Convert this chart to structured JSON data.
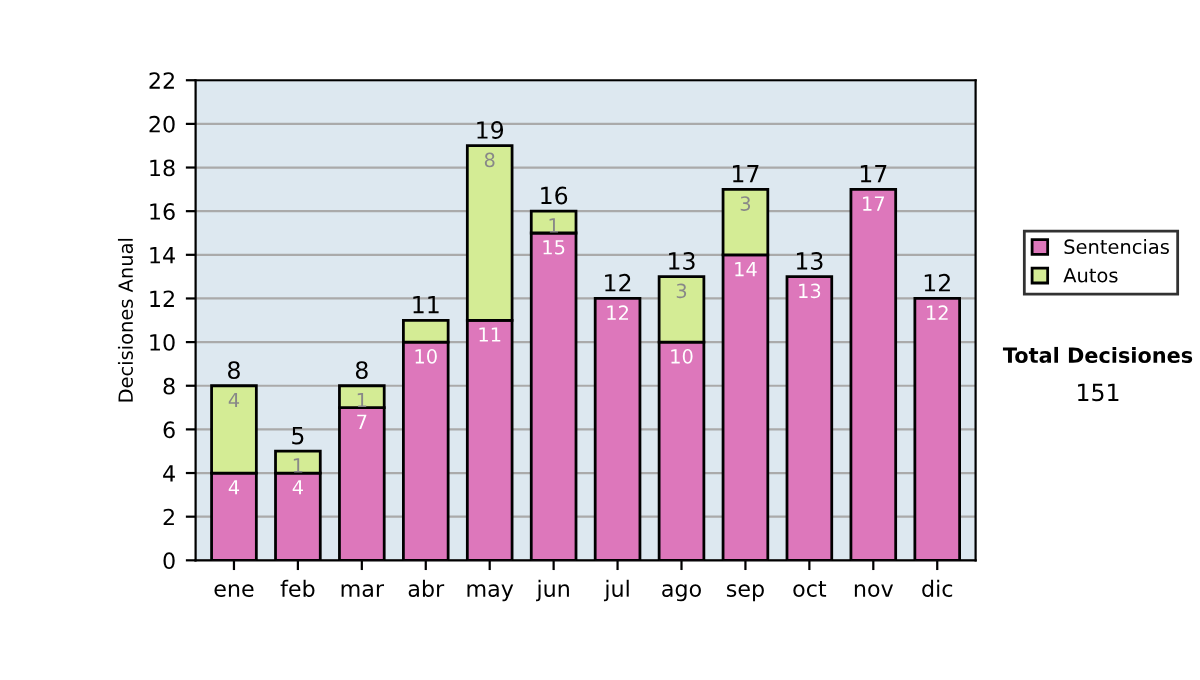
{
  "chart_data": {
    "type": "bar",
    "stacked": true,
    "ylabel": "Decisiones Anual",
    "categories": [
      "ene",
      "feb",
      "mar",
      "abr",
      "may",
      "jun",
      "jul",
      "ago",
      "sep",
      "oct",
      "nov",
      "dic"
    ],
    "series": [
      {
        "name": "Sentencias",
        "color": "#dd77bb",
        "values": [
          4,
          4,
          7,
          10,
          11,
          15,
          12,
          10,
          14,
          13,
          17,
          12
        ],
        "value_labels": [
          "4",
          "4",
          "7",
          "10",
          "11",
          "15",
          "12",
          "10",
          "14",
          "13",
          "17",
          "12"
        ]
      },
      {
        "name": "Autos",
        "color": "#d4ec95",
        "values": [
          4,
          1,
          1,
          1,
          8,
          1,
          null,
          3,
          3,
          null,
          null,
          null
        ],
        "value_labels": [
          "4",
          "1",
          "1",
          null,
          "8",
          "1",
          null,
          "3",
          "3",
          null,
          null,
          null
        ]
      }
    ],
    "totals": [
      "8",
      "5",
      "8",
      "11",
      "19",
      "16",
      "12",
      "13",
      "17",
      "13",
      "17",
      "12"
    ],
    "ylim": [
      0,
      22
    ],
    "yticks": [
      0,
      2,
      4,
      6,
      8,
      10,
      12,
      14,
      16,
      18,
      20,
      22
    ],
    "grid": "y",
    "legend": "right",
    "annotations": [
      "Total Decisiones",
      "151"
    ]
  }
}
